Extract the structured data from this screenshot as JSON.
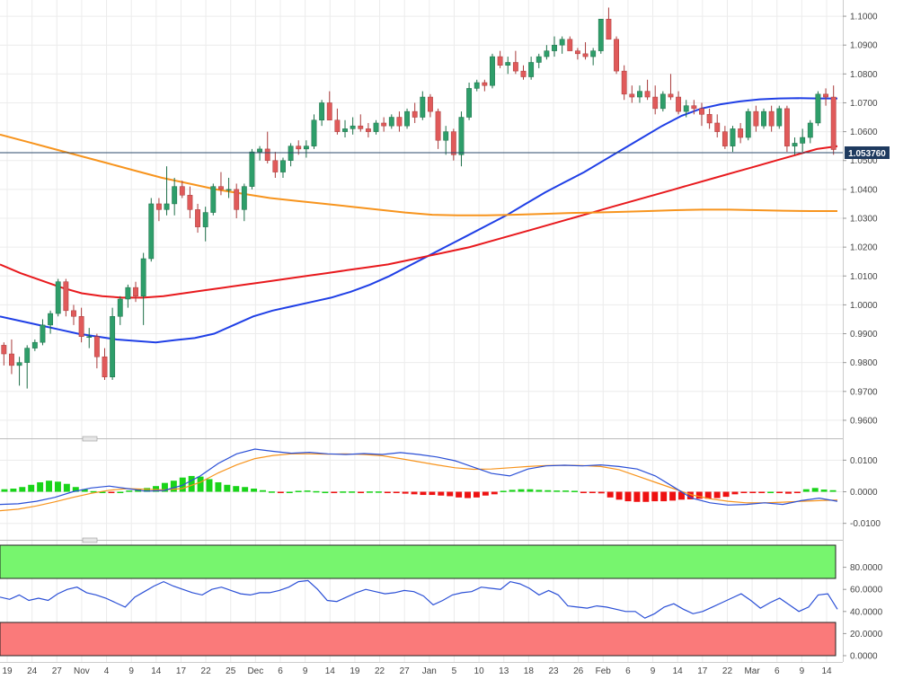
{
  "chart_data": [
    {
      "type": "candlestick",
      "panel": "price",
      "current_price": "1.053760",
      "ylim": [
        0.955,
        1.105
      ],
      "y_ticks": [
        "1.1000",
        "1.0900",
        "1.0800",
        "1.0700",
        "1.0600",
        "1.0500",
        "1.0400",
        "1.0300",
        "1.0200",
        "1.0100",
        "1.0000",
        "0.9900",
        "0.9800",
        "0.9700",
        "0.9600"
      ],
      "x_tick_labels": [
        "19",
        "24",
        "27",
        "Nov",
        "4",
        "9",
        "14",
        "17",
        "22",
        "25",
        "Dec",
        "6",
        "9",
        "14",
        "19",
        "22",
        "27",
        "Jan",
        "5",
        "10",
        "13",
        "18",
        "23",
        "26",
        "Feb",
        "6",
        "9",
        "14",
        "17",
        "22",
        "Mar",
        "6",
        "9",
        "14"
      ],
      "ohlc": [
        [
          0.986,
          0.987,
          0.979,
          0.983
        ],
        [
          0.983,
          0.988,
          0.976,
          0.979
        ],
        [
          0.979,
          0.982,
          0.972,
          0.98
        ],
        [
          0.98,
          0.986,
          0.971,
          0.985
        ],
        [
          0.985,
          0.988,
          0.984,
          0.987
        ],
        [
          0.987,
          0.995,
          0.986,
          0.993
        ],
        [
          0.993,
          0.998,
          0.99,
          0.997
        ],
        [
          0.997,
          1.009,
          0.996,
          1.008
        ],
        [
          1.008,
          1.009,
          0.996,
          0.998
        ],
        [
          0.998,
          1.0,
          0.993,
          0.996
        ],
        [
          0.996,
          0.999,
          0.987,
          0.989
        ],
        [
          0.989,
          0.992,
          0.985,
          0.989
        ],
        [
          0.989,
          0.99,
          0.978,
          0.982
        ],
        [
          0.982,
          0.985,
          0.974,
          0.975
        ],
        [
          0.975,
          0.999,
          0.974,
          0.996
        ],
        [
          0.996,
          1.003,
          0.993,
          1.002
        ],
        [
          1.002,
          1.007,
          0.999,
          1.006
        ],
        [
          1.006,
          1.008,
          1.001,
          1.003
        ],
        [
          1.003,
          1.018,
          0.993,
          1.016
        ],
        [
          1.016,
          1.037,
          1.015,
          1.035
        ],
        [
          1.035,
          1.037,
          1.029,
          1.033
        ],
        [
          1.033,
          1.048,
          1.031,
          1.035
        ],
        [
          1.035,
          1.044,
          1.031,
          1.041
        ],
        [
          1.041,
          1.043,
          1.037,
          1.038
        ],
        [
          1.038,
          1.041,
          1.03,
          1.033
        ],
        [
          1.033,
          1.035,
          1.025,
          1.027
        ],
        [
          1.027,
          1.034,
          1.022,
          1.032
        ],
        [
          1.032,
          1.042,
          1.031,
          1.041
        ],
        [
          1.041,
          1.046,
          1.038,
          1.04
        ],
        [
          1.04,
          1.044,
          1.037,
          1.04
        ],
        [
          1.04,
          1.042,
          1.03,
          1.033
        ],
        [
          1.033,
          1.042,
          1.029,
          1.041
        ],
        [
          1.041,
          1.054,
          1.04,
          1.053
        ],
        [
          1.053,
          1.055,
          1.05,
          1.054
        ],
        [
          1.054,
          1.06,
          1.049,
          1.05
        ],
        [
          1.05,
          1.053,
          1.044,
          1.046
        ],
        [
          1.046,
          1.051,
          1.044,
          1.05
        ],
        [
          1.05,
          1.056,
          1.048,
          1.055
        ],
        [
          1.055,
          1.057,
          1.052,
          1.054
        ],
        [
          1.054,
          1.057,
          1.051,
          1.055
        ],
        [
          1.055,
          1.066,
          1.054,
          1.064
        ],
        [
          1.064,
          1.071,
          1.062,
          1.07
        ],
        [
          1.07,
          1.074,
          1.065,
          1.064
        ],
        [
          1.064,
          1.068,
          1.059,
          1.06
        ],
        [
          1.06,
          1.064,
          1.058,
          1.061
        ],
        [
          1.061,
          1.065,
          1.059,
          1.062
        ],
        [
          1.062,
          1.066,
          1.06,
          1.061
        ],
        [
          1.061,
          1.063,
          1.058,
          1.06
        ],
        [
          1.06,
          1.064,
          1.059,
          1.063
        ],
        [
          1.063,
          1.065,
          1.06,
          1.062
        ],
        [
          1.062,
          1.066,
          1.061,
          1.065
        ],
        [
          1.065,
          1.067,
          1.06,
          1.062
        ],
        [
          1.062,
          1.068,
          1.061,
          1.067
        ],
        [
          1.067,
          1.07,
          1.063,
          1.065
        ],
        [
          1.065,
          1.074,
          1.064,
          1.072
        ],
        [
          1.072,
          1.073,
          1.065,
          1.067
        ],
        [
          1.067,
          1.068,
          1.054,
          1.057
        ],
        [
          1.057,
          1.062,
          1.052,
          1.06
        ],
        [
          1.06,
          1.061,
          1.05,
          1.052
        ],
        [
          1.052,
          1.067,
          1.048,
          1.065
        ],
        [
          1.065,
          1.077,
          1.064,
          1.075
        ],
        [
          1.075,
          1.078,
          1.074,
          1.077
        ],
        [
          1.077,
          1.078,
          1.074,
          1.076
        ],
        [
          1.076,
          1.087,
          1.075,
          1.086
        ],
        [
          1.086,
          1.088,
          1.082,
          1.083
        ],
        [
          1.083,
          1.086,
          1.08,
          1.084
        ],
        [
          1.084,
          1.088,
          1.08,
          1.081
        ],
        [
          1.081,
          1.083,
          1.078,
          1.079
        ],
        [
          1.079,
          1.086,
          1.078,
          1.084
        ],
        [
          1.084,
          1.087,
          1.082,
          1.086
        ],
        [
          1.086,
          1.09,
          1.085,
          1.088
        ],
        [
          1.088,
          1.093,
          1.086,
          1.09
        ],
        [
          1.09,
          1.093,
          1.087,
          1.092
        ],
        [
          1.092,
          1.093,
          1.088,
          1.088
        ],
        [
          1.088,
          1.089,
          1.085,
          1.087
        ],
        [
          1.087,
          1.091,
          1.085,
          1.086
        ],
        [
          1.086,
          1.089,
          1.083,
          1.088
        ],
        [
          1.088,
          1.099,
          1.087,
          1.099
        ],
        [
          1.099,
          1.103,
          1.092,
          1.092
        ],
        [
          1.092,
          1.093,
          1.08,
          1.081
        ],
        [
          1.081,
          1.083,
          1.071,
          1.073
        ],
        [
          1.073,
          1.076,
          1.07,
          1.072
        ],
        [
          1.072,
          1.076,
          1.07,
          1.074
        ],
        [
          1.074,
          1.078,
          1.071,
          1.072
        ],
        [
          1.072,
          1.076,
          1.066,
          1.068
        ],
        [
          1.068,
          1.074,
          1.067,
          1.073
        ],
        [
          1.073,
          1.08,
          1.071,
          1.072
        ],
        [
          1.072,
          1.074,
          1.066,
          1.067
        ],
        [
          1.067,
          1.071,
          1.065,
          1.069
        ],
        [
          1.069,
          1.071,
          1.066,
          1.068
        ],
        [
          1.068,
          1.07,
          1.062,
          1.066
        ],
        [
          1.066,
          1.068,
          1.061,
          1.063
        ],
        [
          1.063,
          1.066,
          1.058,
          1.06
        ],
        [
          1.06,
          1.062,
          1.054,
          1.055
        ],
        [
          1.055,
          1.062,
          1.053,
          1.061
        ],
        [
          1.061,
          1.063,
          1.056,
          1.058
        ],
        [
          1.058,
          1.068,
          1.057,
          1.067
        ],
        [
          1.067,
          1.069,
          1.06,
          1.062
        ],
        [
          1.062,
          1.068,
          1.061,
          1.067
        ],
        [
          1.067,
          1.069,
          1.06,
          1.062
        ],
        [
          1.062,
          1.069,
          1.061,
          1.068
        ],
        [
          1.068,
          1.069,
          1.053,
          1.055
        ],
        [
          1.055,
          1.058,
          1.052,
          1.056
        ],
        [
          1.056,
          1.061,
          1.053,
          1.058
        ],
        [
          1.058,
          1.064,
          1.056,
          1.063
        ],
        [
          1.063,
          1.074,
          1.062,
          1.073
        ],
        [
          1.073,
          1.075,
          1.069,
          1.072
        ],
        [
          1.072,
          1.076,
          1.052,
          1.0538
        ]
      ],
      "moving_averages": [
        {
          "color": "#1f3fe6",
          "values": [
            0.996,
            0.9945,
            0.993,
            0.9915,
            0.99,
            0.989,
            0.988,
            0.9875,
            0.987,
            0.9878,
            0.9885,
            0.99,
            0.993,
            0.996,
            0.998,
            0.9995,
            1.001,
            1.0025,
            1.0045,
            1.007,
            1.01,
            1.0135,
            1.017,
            1.0205,
            1.024,
            1.0275,
            1.031,
            1.035,
            1.039,
            1.0425,
            1.046,
            1.05,
            1.054,
            1.058,
            1.062,
            1.0655,
            1.068,
            1.0695,
            1.0705,
            1.0712,
            1.0715,
            1.0716,
            1.0715,
            1.0715
          ]
        },
        {
          "color": "#e8191d",
          "values": [
            1.014,
            1.011,
            1.0085,
            1.006,
            1.004,
            1.003,
            1.0025,
            1.0025,
            1.003,
            1.004,
            1.005,
            1.006,
            1.007,
            1.008,
            1.009,
            1.01,
            1.011,
            1.012,
            1.013,
            1.014,
            1.0155,
            1.017,
            1.0185,
            1.02,
            1.022,
            1.024,
            1.026,
            1.028,
            1.03,
            1.032,
            1.034,
            1.036,
            1.038,
            1.04,
            1.042,
            1.044,
            1.046,
            1.048,
            1.05,
            1.052,
            1.054,
            1.055
          ]
        },
        {
          "color": "#f7941d",
          "values": [
            1.059,
            1.0565,
            1.054,
            1.0515,
            1.049,
            1.0465,
            1.044,
            1.042,
            1.04,
            1.0385,
            1.037,
            1.036,
            1.035,
            1.034,
            1.033,
            1.032,
            1.0312,
            1.031,
            1.031,
            1.0312,
            1.0315,
            1.0318,
            1.032,
            1.0322,
            1.0325,
            1.0328,
            1.033,
            1.033,
            1.0328,
            1.0326,
            1.0325,
            1.0325
          ]
        }
      ]
    },
    {
      "type": "macd",
      "panel": "macd",
      "ylim": [
        -0.0135,
        0.0155
      ],
      "y_ticks": [
        "0.0100",
        "0.0000",
        "-0.0100"
      ],
      "macd_line": [
        -0.004,
        -0.0038,
        -0.003,
        -0.0018,
        0.0,
        0.0012,
        0.0018,
        0.001,
        0.0002,
        0.0004,
        0.002,
        0.005,
        0.009,
        0.012,
        0.0135,
        0.0128,
        0.0122,
        0.0125,
        0.012,
        0.0118,
        0.0121,
        0.0118,
        0.0124,
        0.0118,
        0.011,
        0.0098,
        0.0078,
        0.0058,
        0.005,
        0.0072,
        0.0082,
        0.0084,
        0.0082,
        0.0085,
        0.008,
        0.0072,
        0.005,
        0.0015,
        -0.002,
        -0.0035,
        -0.0042,
        -0.004,
        -0.0035,
        -0.004,
        -0.0028,
        -0.002,
        -0.003
      ],
      "signal_line": [
        -0.006,
        -0.0055,
        -0.0045,
        -0.0032,
        -0.0018,
        -0.0005,
        0.0005,
        0.001,
        0.0008,
        0.0006,
        0.001,
        0.003,
        0.006,
        0.0085,
        0.0105,
        0.0115,
        0.012,
        0.012,
        0.0119,
        0.012,
        0.0118,
        0.0114,
        0.0105,
        0.0095,
        0.0085,
        0.0076,
        0.0071,
        0.0072,
        0.0076,
        0.008,
        0.0083,
        0.0084,
        0.0083,
        0.008,
        0.007,
        0.005,
        0.003,
        0.001,
        -0.001,
        -0.0022,
        -0.003,
        -0.0035,
        -0.0035,
        -0.0033,
        -0.003,
        -0.0028,
        -0.0026
      ],
      "histogram": [
        0.0008,
        0.001,
        0.0015,
        0.0022,
        0.003,
        0.0035,
        0.0032,
        0.0025,
        0.0015,
        0.0008,
        0.0002,
        0.0,
        -0.0002,
        0.0,
        0.0004,
        0.0008,
        0.0012,
        0.0018,
        0.0028,
        0.0035,
        0.0045,
        0.005,
        0.0048,
        0.004,
        0.003,
        0.0022,
        0.0018,
        0.0015,
        0.001,
        0.0005,
        0.0001,
        -0.0002,
        0.0,
        0.0003,
        0.0004,
        0.0002,
        0.0,
        -0.0001,
        0.0001,
        0.0001,
        -0.0002,
        0.0001,
        0.0001,
        -0.0001,
        -0.0004,
        -0.0006,
        -0.0008,
        -0.001,
        -0.001,
        -0.0012,
        -0.0014,
        -0.0018,
        -0.002,
        -0.0018,
        -0.0012,
        -0.0008,
        0.0003,
        0.0006,
        0.0008,
        0.0008,
        0.0006,
        0.0005,
        0.0004,
        0.0004,
        0.0003,
        -0.0004,
        -0.0002,
        -0.0005,
        -0.0018,
        -0.0025,
        -0.003,
        -0.0032,
        -0.0032,
        -0.003,
        -0.003,
        -0.0028,
        -0.0025,
        -0.0024,
        -0.0022,
        -0.0022,
        -0.002,
        -0.0016,
        -0.0008,
        -0.0004,
        -0.0002,
        -0.0003,
        0.0,
        -0.0004,
        -0.0006,
        -0.0004,
        0.0008,
        0.0012,
        0.0007,
        0.0005
      ]
    },
    {
      "type": "line",
      "panel": "rsi",
      "ylim": [
        0,
        100
      ],
      "y_ticks": [
        "80.0000",
        "60.0000",
        "40.0000",
        "20.0000",
        "0.0000"
      ],
      "overbought_zone": [
        70,
        100
      ],
      "oversold_zone": [
        0,
        30
      ],
      "values": [
        53,
        51,
        55,
        50,
        52,
        50,
        56,
        60,
        62,
        57,
        55,
        52,
        48,
        44,
        53,
        58,
        63,
        67,
        63,
        60,
        57,
        55,
        60,
        62,
        59,
        56,
        55,
        57,
        57,
        59,
        62,
        67,
        68,
        60,
        50,
        49,
        53,
        57,
        60,
        58,
        56,
        57,
        59,
        58,
        54,
        46,
        50,
        55,
        57,
        58,
        62,
        61,
        60,
        67,
        65,
        61,
        55,
        59,
        55,
        45,
        44,
        43,
        45,
        44,
        42,
        40,
        40,
        34,
        38,
        44,
        47,
        42,
        38,
        40,
        44,
        48,
        52,
        56,
        50,
        43,
        48,
        52,
        46,
        40,
        44,
        55,
        56,
        42
      ]
    }
  ]
}
